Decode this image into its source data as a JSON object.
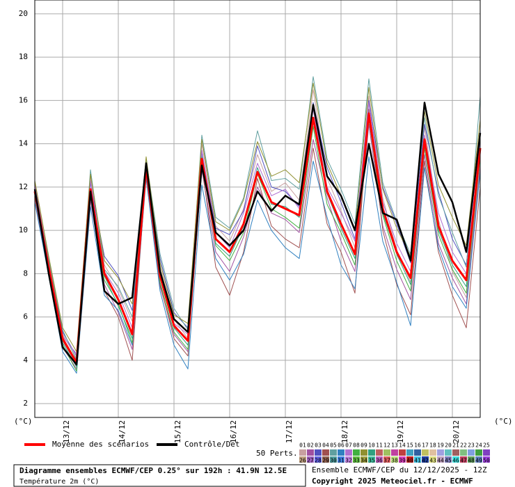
{
  "chart_data": {
    "type": "line",
    "y_unit": "(°C)",
    "categories": [
      null,
      null,
      "13/12",
      null,
      null,
      null,
      "14/12",
      null,
      null,
      null,
      "15/12",
      null,
      null,
      null,
      "16/12",
      null,
      null,
      null,
      "17/12",
      null,
      null,
      null,
      "18/12",
      null,
      null,
      null,
      "19/12",
      null,
      null,
      null,
      "20/12",
      null,
      null
    ],
    "ylim": [
      1.36,
      20.64
    ],
    "yticks": [
      2,
      4,
      6,
      8,
      10,
      12,
      14,
      16,
      18,
      20
    ],
    "grid": true,
    "series": [
      {
        "name": "01",
        "color": "#c8a0a0",
        "values": [
          12.2,
          8.6,
          5.2,
          4.1,
          12.5,
          8.4,
          7.3,
          5.8,
          13.2,
          8.3,
          5.9,
          5.0,
          14.0,
          10.2,
          9.5,
          11.0,
          13.5,
          11.8,
          12.2,
          11.4,
          16.5,
          12.4,
          10.9,
          9.2,
          16.2,
          11.5,
          9.1,
          7.6,
          14.8,
          10.5,
          8.1,
          6.9,
          13.1
        ]
      },
      {
        "name": "02",
        "color": "#a050a0",
        "values": [
          11.5,
          8.0,
          4.6,
          3.6,
          11.4,
          7.5,
          6.2,
          4.5,
          12.6,
          7.4,
          5.2,
          4.4,
          12.8,
          9.0,
          8.1,
          9.7,
          12.0,
          10.8,
          10.5,
          9.9,
          14.2,
          11.5,
          9.5,
          8.1,
          14.9,
          10.2,
          8.2,
          6.8,
          13.5,
          9.4,
          7.8,
          6.6,
          12.9
        ]
      },
      {
        "name": "03",
        "color": "#5050c0",
        "values": [
          12.0,
          8.4,
          5.3,
          4.2,
          12.2,
          8.8,
          7.9,
          6.3,
          13.1,
          8.7,
          6.2,
          5.5,
          13.6,
          10.1,
          9.8,
          10.9,
          13.9,
          12.0,
          11.8,
          11.1,
          15.9,
          12.9,
          11.3,
          9.6,
          16.0,
          12.0,
          10.3,
          8.5,
          14.9,
          11.8,
          9.6,
          8.4,
          14.6
        ]
      },
      {
        "name": "04",
        "color": "#a05050",
        "values": [
          11.7,
          8.2,
          4.9,
          3.8,
          11.9,
          7.2,
          6.0,
          4.0,
          12.7,
          7.5,
          5.0,
          4.2,
          13.0,
          8.3,
          7.0,
          9.0,
          12.4,
          10.2,
          9.6,
          9.2,
          13.8,
          10.3,
          9.0,
          7.1,
          15.6,
          10.0,
          7.5,
          6.1,
          13.2,
          9.0,
          7.0,
          5.5,
          12.0
        ]
      },
      {
        "name": "05",
        "color": "#60a0a0",
        "values": [
          11.9,
          8.7,
          5.4,
          4.0,
          12.8,
          8.2,
          7.4,
          6.0,
          13.3,
          8.9,
          6.4,
          5.4,
          14.4,
          10.6,
          10.1,
          11.5,
          14.6,
          12.3,
          12.4,
          11.9,
          17.1,
          13.3,
          11.9,
          10.3,
          17.0,
          12.2,
          10.4,
          8.9,
          15.2,
          11.6,
          9.9,
          8.3,
          16.2
        ]
      },
      {
        "name": "06",
        "color": "#3080c0",
        "values": [
          11.3,
          7.9,
          4.4,
          3.4,
          11.1,
          7.0,
          6.3,
          4.7,
          12.4,
          7.2,
          4.7,
          3.6,
          12.1,
          8.7,
          7.7,
          8.9,
          11.4,
          10.0,
          9.2,
          8.7,
          13.2,
          10.6,
          8.4,
          7.3,
          13.4,
          9.5,
          7.6,
          5.6,
          12.9,
          9.2,
          7.4,
          6.4,
          12.7
        ]
      },
      {
        "name": "07",
        "color": "#b070d0",
        "values": [
          12.1,
          8.5,
          5.1,
          4.3,
          12.3,
          8.1,
          7.1,
          5.5,
          13.0,
          8.0,
          5.7,
          5.2,
          13.7,
          9.9,
          9.2,
          10.8,
          13.1,
          11.6,
          11.9,
          11.0,
          15.6,
          12.0,
          10.8,
          9.5,
          15.9,
          11.3,
          9.4,
          8.1,
          14.4,
          10.8,
          9.0,
          8.0,
          14.2
        ]
      },
      {
        "name": "08",
        "color": "#40b040",
        "values": [
          11.6,
          8.1,
          4.7,
          3.5,
          11.6,
          7.7,
          6.6,
          4.8,
          12.9,
          7.6,
          5.3,
          4.5,
          13.2,
          9.3,
          8.6,
          9.9,
          12.6,
          11.0,
          10.6,
          10.1,
          14.8,
          11.2,
          9.9,
          8.4,
          15.1,
          10.7,
          8.6,
          7.2,
          13.8,
          9.8,
          8.2,
          7.1,
          13.4
        ]
      },
      {
        "name": "09",
        "color": "#909030",
        "values": [
          12.3,
          8.8,
          5.5,
          4.4,
          12.6,
          8.6,
          7.8,
          6.6,
          13.4,
          8.5,
          6.1,
          5.7,
          14.2,
          10.4,
          10.0,
          11.4,
          14.1,
          12.5,
          12.8,
          12.2,
          16.8,
          13.1,
          11.6,
          10.0,
          16.6,
          11.9,
          10.1,
          8.8,
          15.5,
          12.1,
          10.6,
          9.3,
          15.1
        ]
      },
      {
        "name": "10",
        "color": "#30a080",
        "values": [
          11.8,
          8.3,
          4.8,
          3.7,
          11.8,
          7.9,
          6.5,
          5.0,
          12.8,
          7.8,
          5.5,
          4.7,
          13.4,
          9.4,
          8.8,
          10.2,
          12.9,
          11.2,
          11.1,
          10.6,
          15.0,
          11.7,
          10.1,
          8.7,
          15.3,
          10.8,
          8.9,
          7.5,
          14.0,
          10.0,
          8.4,
          7.4,
          13.6
        ]
      },
      {
        "name": "Moyenne des scénarios",
        "color": "#ff0000",
        "values": [
          11.8,
          8.3,
          5.0,
          3.9,
          11.9,
          8.0,
          6.8,
          5.2,
          12.9,
          7.9,
          5.6,
          4.9,
          13.3,
          9.6,
          9.0,
          10.3,
          12.7,
          11.3,
          11.0,
          10.7,
          15.2,
          11.8,
          10.3,
          8.9,
          15.4,
          11.0,
          9.0,
          7.8,
          14.2,
          10.2,
          8.6,
          7.7,
          13.8
        ]
      },
      {
        "name": "Contrôle/Det",
        "color": "#000000",
        "values": [
          11.9,
          8.0,
          4.6,
          3.8,
          11.8,
          7.2,
          6.6,
          6.9,
          13.1,
          8.1,
          5.9,
          5.3,
          13.0,
          9.9,
          9.3,
          10.0,
          11.8,
          10.9,
          11.6,
          11.2,
          15.8,
          12.5,
          11.6,
          10.0,
          14.0,
          10.8,
          10.5,
          8.6,
          15.9,
          12.6,
          11.3,
          9.0,
          14.5
        ]
      }
    ],
    "more_members": [
      {
        "name": "11",
        "color": "#c06060"
      },
      {
        "name": "12",
        "color": "#a0c060"
      },
      {
        "name": "13",
        "color": "#c040a0"
      },
      {
        "name": "14",
        "color": "#c04040"
      },
      {
        "name": "15",
        "color": "#40a0c0"
      },
      {
        "name": "16",
        "color": "#3060a0"
      },
      {
        "name": "17",
        "color": "#c0c060"
      },
      {
        "name": "18",
        "color": "#e0c0a0"
      },
      {
        "name": "19",
        "color": "#a0a0e0"
      },
      {
        "name": "20",
        "color": "#60c0c0"
      },
      {
        "name": "21",
        "color": "#a06060"
      },
      {
        "name": "22",
        "color": "#80c080"
      },
      {
        "name": "23",
        "color": "#80a0e0"
      },
      {
        "name": "24",
        "color": "#40a040"
      },
      {
        "name": "25",
        "color": "#8040c0"
      },
      {
        "name": "26",
        "color": "#c0a080"
      },
      {
        "name": "27",
        "color": "#a060c0"
      },
      {
        "name": "28",
        "color": "#6060e0"
      },
      {
        "name": "29",
        "color": "#906050"
      },
      {
        "name": "30",
        "color": "#50a0a0"
      },
      {
        "name": "31",
        "color": "#4080e0"
      },
      {
        "name": "32",
        "color": "#c080e0"
      },
      {
        "name": "33",
        "color": "#60c040"
      },
      {
        "name": "34",
        "color": "#a0a040"
      },
      {
        "name": "35",
        "color": "#40c0a0"
      },
      {
        "name": "36",
        "color": "#c060c0"
      },
      {
        "name": "37",
        "color": "#e06060"
      },
      {
        "name": "38",
        "color": "#c0e080"
      },
      {
        "name": "39",
        "color": "#e040c0"
      },
      {
        "name": "40",
        "color": "#c02020"
      },
      {
        "name": "41",
        "color": "#40c0e0"
      },
      {
        "name": "42",
        "color": "#2040a0"
      },
      {
        "name": "43",
        "color": "#e0e080"
      },
      {
        "name": "44",
        "color": "#c0a0c0"
      },
      {
        "name": "45",
        "color": "#8080c0"
      },
      {
        "name": "46",
        "color": "#40e0e0"
      },
      {
        "name": "47",
        "color": "#c04060"
      },
      {
        "name": "48",
        "color": "#60a060"
      },
      {
        "name": "49",
        "color": "#6080c0"
      },
      {
        "name": "50",
        "color": "#a040e0"
      }
    ],
    "members_label": "50 Perts.",
    "run_info": "Ensemble ECMWF/CEP du 12/12/2025 - 12Z",
    "copyright": "Copyright 2025 Meteociel.fr - ECMWF",
    "title": "Diagramme ensembles ECMWF/CEP 0.25° sur 192h : 41.9N 12.5E",
    "subtitle": "Température 2m (°C)"
  }
}
